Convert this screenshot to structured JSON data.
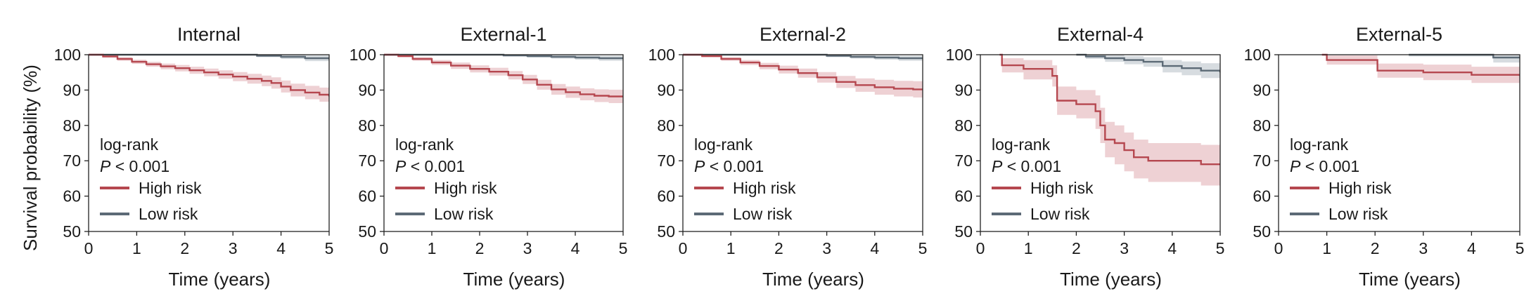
{
  "colors": {
    "high_risk": "#b5474f",
    "high_risk_band": "#e8c2c5",
    "low_risk": "#5c6a76",
    "low_risk_band": "#c9d0d6",
    "axis": "#222222"
  },
  "shared": {
    "ylabel": "Survival probability (%)",
    "xlabel": "Time (years)",
    "logrank_label": "log-rank",
    "p_symbol": "P",
    "p_rest": " < 0.001",
    "legend_high": "High risk",
    "legend_low": "Low risk"
  },
  "chart_data": [
    {
      "type": "line",
      "title": "Internal",
      "xlabel": "Time (years)",
      "ylabel": "Survival probability (%)",
      "xlim": [
        0,
        5
      ],
      "ylim": [
        50,
        100
      ],
      "xticks": [
        0,
        1,
        2,
        3,
        4,
        5
      ],
      "yticks": [
        50,
        60,
        70,
        80,
        90,
        100
      ],
      "grid": false,
      "series": [
        {
          "name": "High risk",
          "x": [
            0,
            0.3,
            0.6,
            0.9,
            1.2,
            1.5,
            1.8,
            2.1,
            2.4,
            2.7,
            3.0,
            3.3,
            3.6,
            3.8,
            4.0,
            4.2,
            4.5,
            4.8,
            5.0
          ],
          "y": [
            100,
            99.5,
            98.8,
            98.0,
            97.3,
            96.7,
            96.2,
            95.6,
            95.0,
            94.4,
            93.8,
            93.2,
            92.6,
            92.0,
            91.0,
            90.0,
            89.3,
            88.7,
            88.2
          ],
          "ci_lower": [
            100,
            99.2,
            98.3,
            97.4,
            96.6,
            95.9,
            95.3,
            94.6,
            93.9,
            93.2,
            92.5,
            91.8,
            91.1,
            90.4,
            89.3,
            88.2,
            87.4,
            86.7,
            86.1
          ],
          "ci_upper": [
            100,
            99.8,
            99.3,
            98.6,
            98.0,
            97.5,
            97.1,
            96.6,
            96.1,
            95.6,
            95.1,
            94.6,
            94.1,
            93.6,
            92.7,
            91.8,
            91.2,
            90.7,
            90.3
          ]
        },
        {
          "name": "Low risk",
          "x": [
            0,
            3.0,
            3.5,
            4.0,
            4.5,
            5.0
          ],
          "y": [
            100,
            100,
            99.7,
            99.4,
            99.0,
            98.7
          ],
          "ci_lower": [
            100,
            99.9,
            99.3,
            98.8,
            98.2,
            97.7
          ],
          "ci_upper": [
            100,
            100,
            100,
            100,
            99.8,
            99.6
          ]
        }
      ]
    },
    {
      "type": "line",
      "title": "External-1",
      "xlabel": "Time (years)",
      "ylabel": "",
      "xlim": [
        0,
        5
      ],
      "ylim": [
        50,
        100
      ],
      "xticks": [
        0,
        1,
        2,
        3,
        4,
        5
      ],
      "yticks": [
        50,
        60,
        70,
        80,
        90,
        100
      ],
      "grid": false,
      "series": [
        {
          "name": "High risk",
          "x": [
            0,
            0.3,
            0.6,
            1.0,
            1.4,
            1.8,
            2.2,
            2.6,
            2.9,
            3.2,
            3.5,
            3.8,
            4.1,
            4.4,
            4.7,
            5.0
          ],
          "y": [
            100,
            99.6,
            98.8,
            97.8,
            96.9,
            96.0,
            95.2,
            94.2,
            93.0,
            91.5,
            90.2,
            89.4,
            88.8,
            88.4,
            88.2,
            88.0
          ],
          "ci_lower": [
            100,
            99.3,
            98.3,
            97.1,
            96.0,
            95.0,
            94.1,
            93.0,
            91.7,
            90.1,
            88.7,
            87.8,
            87.1,
            86.6,
            86.3,
            86.0
          ],
          "ci_upper": [
            100,
            99.9,
            99.3,
            98.5,
            97.8,
            97.0,
            96.3,
            95.4,
            94.3,
            92.9,
            91.7,
            91.0,
            90.5,
            90.2,
            90.1,
            90.0
          ]
        },
        {
          "name": "Low risk",
          "x": [
            0,
            2.0,
            2.5,
            3.0,
            3.5,
            4.0,
            4.5,
            5.0
          ],
          "y": [
            100,
            100,
            99.8,
            99.6,
            99.4,
            99.2,
            99.0,
            98.8
          ],
          "ci_lower": [
            100,
            99.9,
            99.5,
            99.2,
            98.9,
            98.6,
            98.3,
            98.0
          ],
          "ci_upper": [
            100,
            100,
            100,
            100,
            99.9,
            99.8,
            99.7,
            99.6
          ]
        }
      ]
    },
    {
      "type": "line",
      "title": "External-2",
      "xlabel": "Time (years)",
      "ylabel": "",
      "xlim": [
        0,
        5
      ],
      "ylim": [
        50,
        100
      ],
      "xticks": [
        0,
        1,
        2,
        3,
        4,
        5
      ],
      "yticks": [
        50,
        60,
        70,
        80,
        90,
        100
      ],
      "grid": false,
      "series": [
        {
          "name": "High risk",
          "x": [
            0,
            0.4,
            0.8,
            1.2,
            1.6,
            2.0,
            2.4,
            2.8,
            3.2,
            3.6,
            4.0,
            4.4,
            4.8,
            5.0
          ],
          "y": [
            100,
            99.6,
            98.8,
            97.8,
            96.8,
            95.8,
            94.8,
            93.6,
            92.3,
            91.4,
            90.8,
            90.4,
            90.2,
            90.2
          ],
          "ci_lower": [
            100,
            99.3,
            98.3,
            97.1,
            95.9,
            94.7,
            93.5,
            92.1,
            90.6,
            89.5,
            88.7,
            88.2,
            87.9,
            87.9
          ],
          "ci_upper": [
            100,
            99.9,
            99.3,
            98.5,
            97.7,
            96.9,
            96.1,
            95.1,
            94.0,
            93.3,
            92.9,
            92.6,
            92.5,
            92.5
          ]
        },
        {
          "name": "Low risk",
          "x": [
            0,
            2.5,
            3.0,
            3.5,
            4.0,
            4.5,
            5.0
          ],
          "y": [
            100,
            100,
            99.7,
            99.4,
            99.2,
            99.0,
            98.9
          ],
          "ci_lower": [
            100,
            99.8,
            99.3,
            98.9,
            98.6,
            98.3,
            98.1
          ],
          "ci_upper": [
            100,
            100,
            100,
            99.9,
            99.8,
            99.7,
            99.7
          ]
        }
      ]
    },
    {
      "type": "line",
      "title": "External-4",
      "xlabel": "Time (years)",
      "ylabel": "",
      "xlim": [
        0,
        5
      ],
      "ylim": [
        50,
        100
      ],
      "xticks": [
        0,
        1,
        2,
        3,
        4,
        5
      ],
      "yticks": [
        50,
        60,
        70,
        80,
        90,
        100
      ],
      "grid": false,
      "series": [
        {
          "name": "High risk",
          "x": [
            0.4,
            0.45,
            0.9,
            1.5,
            1.6,
            2.0,
            2.4,
            2.5,
            2.6,
            2.8,
            3.0,
            3.2,
            3.5,
            3.8,
            4.2,
            4.6,
            5.0
          ],
          "y": [
            100,
            97,
            96,
            94,
            87,
            86,
            84,
            80,
            76,
            75,
            73,
            71,
            70,
            70,
            70,
            69,
            69
          ],
          "ci_lower": [
            100,
            95,
            93,
            91,
            83,
            82,
            79,
            75,
            71,
            69,
            67,
            65,
            64,
            64,
            64,
            63,
            63
          ],
          "ci_upper": [
            100,
            99,
            98.5,
            97,
            91,
            90,
            88.5,
            85,
            81,
            80,
            78,
            76,
            75,
            75,
            75,
            74.5,
            74.5
          ]
        },
        {
          "name": "Low risk",
          "x": [
            2.0,
            2.2,
            2.6,
            3.0,
            3.4,
            3.8,
            4.2,
            4.6,
            5.0
          ],
          "y": [
            100,
            99.5,
            99.0,
            98.5,
            98.0,
            96.8,
            96.2,
            95.5,
            95.0
          ],
          "ci_lower": [
            100,
            98.8,
            98.0,
            97.3,
            96.6,
            95.0,
            94.2,
            93.4,
            92.8
          ],
          "ci_upper": [
            100,
            100,
            99.9,
            99.6,
            99.3,
            98.5,
            98.1,
            97.6,
            97.2
          ]
        }
      ]
    },
    {
      "type": "line",
      "title": "External-5",
      "xlabel": "Time (years)",
      "ylabel": "",
      "xlim": [
        0,
        5
      ],
      "ylim": [
        50,
        100
      ],
      "xticks": [
        0,
        1,
        2,
        3,
        4,
        5
      ],
      "yticks": [
        50,
        60,
        70,
        80,
        90,
        100
      ],
      "grid": false,
      "series": [
        {
          "name": "High risk",
          "x": [
            0.9,
            1.0,
            2.0,
            2.05,
            3.0,
            4.0,
            5.0
          ],
          "y": [
            100,
            98.5,
            98.5,
            95.5,
            95.0,
            94.3,
            94.0
          ],
          "ci_lower": [
            100,
            97.2,
            97.2,
            93.5,
            92.8,
            92.0,
            91.6
          ],
          "ci_upper": [
            100,
            99.8,
            99.8,
            97.5,
            97.2,
            96.6,
            96.4
          ]
        },
        {
          "name": "Low risk",
          "x": [
            2.7,
            4.4,
            4.45,
            5.0
          ],
          "y": [
            100,
            100,
            99.2,
            99.2
          ],
          "ci_lower": [
            99.5,
            99.5,
            97.8,
            97.8
          ],
          "ci_upper": [
            100,
            100,
            100,
            100
          ]
        }
      ]
    }
  ]
}
